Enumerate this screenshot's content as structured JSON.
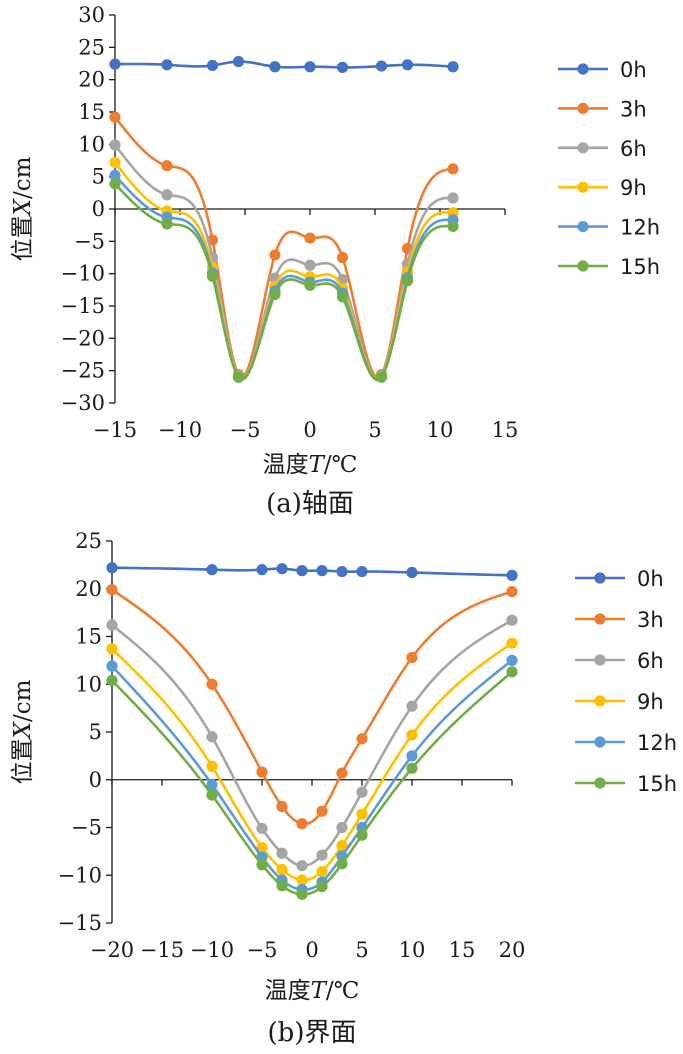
{
  "chart_data": [
    {
      "type": "line",
      "caption": "(a)轴面",
      "xlabel_prefix": "温度",
      "xlabel_var": "T",
      "xlabel_unit": "/℃",
      "ylabel_prefix": "位置",
      "ylabel_var": "X",
      "ylabel_unit": "/cm",
      "xlim": [
        -15,
        15
      ],
      "ylim": [
        -30,
        30
      ],
      "xticks": [
        -15,
        -10,
        -5,
        0,
        5,
        10,
        15
      ],
      "xtick_labels": [
        "−15",
        "−10",
        "−5",
        "0",
        "5",
        "10",
        "15"
      ],
      "yticks": [
        -30,
        -25,
        -20,
        -15,
        -10,
        -5,
        0,
        5,
        10,
        15,
        20,
        25,
        30
      ],
      "ytick_labels": [
        "−30",
        "−25",
        "−20",
        "−15",
        "−10",
        "−5",
        "0",
        "5",
        "10",
        "15",
        "20",
        "25",
        "30"
      ],
      "grid": false,
      "legend_position": "right",
      "x": [
        -15,
        -11,
        -7.5,
        -5.5,
        -2.7,
        0,
        2.5,
        5.5,
        7.5,
        11
      ],
      "series": [
        {
          "name": "0h",
          "color": "#4472C4",
          "values": [
            22.4,
            22.3,
            22.2,
            22.8,
            22.0,
            22.0,
            21.9,
            22.1,
            22.3,
            22.0
          ]
        },
        {
          "name": "3h",
          "color": "#ED7D31",
          "values": [
            14.2,
            6.7,
            -4.8,
            -25.6,
            -7.1,
            -4.5,
            -7.5,
            -25.6,
            -6.1,
            6.2
          ]
        },
        {
          "name": "6h",
          "color": "#A5A5A5",
          "values": [
            9.9,
            2.2,
            -7.5,
            -25.8,
            -10.7,
            -8.7,
            -10.9,
            -25.8,
            -8.5,
            1.7
          ]
        },
        {
          "name": "9h",
          "color": "#FFC000",
          "values": [
            7.2,
            -0.3,
            -9.0,
            -25.9,
            -12.0,
            -10.5,
            -12.3,
            -25.9,
            -9.7,
            -0.6
          ]
        },
        {
          "name": "12h",
          "color": "#5B9BD5",
          "values": [
            5.2,
            -1.3,
            -9.9,
            -26.0,
            -12.7,
            -11.3,
            -13.0,
            -26.0,
            -10.6,
            -1.7
          ]
        },
        {
          "name": "15h",
          "color": "#70AD47",
          "values": [
            3.9,
            -2.3,
            -10.4,
            -26.0,
            -13.2,
            -11.8,
            -13.6,
            -26.0,
            -11.1,
            -2.7
          ]
        }
      ]
    },
    {
      "type": "line",
      "caption": "(b)界面",
      "xlabel_prefix": "温度",
      "xlabel_var": "T",
      "xlabel_unit": "/℃",
      "ylabel_prefix": "位置",
      "ylabel_var": "X",
      "ylabel_unit": "/cm",
      "xlim": [
        -20,
        20
      ],
      "ylim": [
        -15,
        25
      ],
      "xticks": [
        -20,
        -15,
        -10,
        -5,
        0,
        5,
        10,
        15,
        20
      ],
      "xtick_labels": [
        "−20",
        "−15",
        "−10",
        "−5",
        "0",
        "5",
        "10",
        "15",
        "20"
      ],
      "yticks": [
        -15,
        -10,
        -5,
        0,
        5,
        10,
        15,
        20,
        25
      ],
      "ytick_labels": [
        "−15",
        "−10",
        "−5",
        "0",
        "5",
        "10",
        "15",
        "20",
        "25"
      ],
      "grid": false,
      "legend_position": "right",
      "x": [
        -20,
        -10,
        -5,
        -3,
        -1,
        1,
        3,
        5,
        10,
        20
      ],
      "series": [
        {
          "name": "0h",
          "color": "#4472C4",
          "values": [
            22.2,
            22.0,
            22.0,
            22.1,
            21.9,
            21.9,
            21.8,
            21.8,
            21.7,
            21.4
          ]
        },
        {
          "name": "3h",
          "color": "#ED7D31",
          "values": [
            19.9,
            10.0,
            0.8,
            -2.8,
            -4.6,
            -3.3,
            0.7,
            4.3,
            12.8,
            19.7
          ]
        },
        {
          "name": "6h",
          "color": "#A5A5A5",
          "values": [
            16.2,
            4.5,
            -5.1,
            -7.7,
            -9.0,
            -7.9,
            -5.0,
            -1.3,
            7.7,
            16.7
          ]
        },
        {
          "name": "9h",
          "color": "#FFC000",
          "values": [
            13.7,
            1.4,
            -7.1,
            -9.4,
            -10.5,
            -9.6,
            -6.9,
            -3.6,
            4.7,
            14.3
          ]
        },
        {
          "name": "12h",
          "color": "#5B9BD5",
          "values": [
            11.9,
            -0.5,
            -8.1,
            -10.5,
            -11.5,
            -10.7,
            -8.0,
            -5.0,
            2.5,
            12.5
          ]
        },
        {
          "name": "15h",
          "color": "#70AD47",
          "values": [
            10.4,
            -1.6,
            -8.9,
            -11.1,
            -12.0,
            -11.2,
            -8.8,
            -5.8,
            1.2,
            11.3
          ]
        }
      ]
    }
  ]
}
